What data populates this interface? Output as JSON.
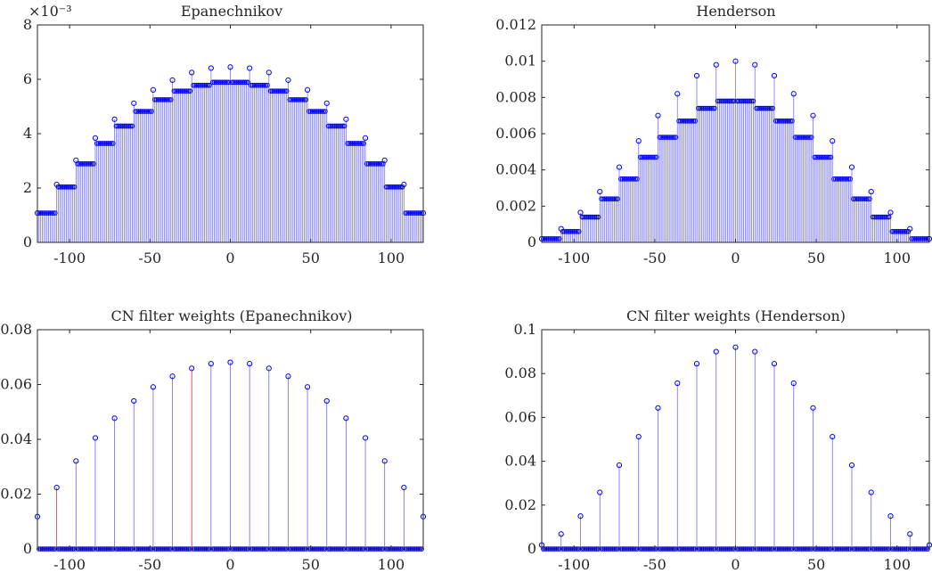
{
  "chart_data": [
    {
      "id": "epa",
      "type": "stem",
      "title": "Epanechnikov",
      "x_range": [
        -120,
        120
      ],
      "ylim": [
        0,
        0.008
      ],
      "y_ticks": [
        0,
        0.002,
        0.004,
        0.006,
        0.008
      ],
      "y_tick_labels": [
        "0",
        "2",
        "4",
        "6",
        "8"
      ],
      "y_scale_label": "×10⁻³",
      "x_ticks": [
        -100,
        -50,
        0,
        50,
        100
      ],
      "x_tick_labels": [
        "-100",
        "-50",
        "0",
        "50",
        "100"
      ],
      "color": "#0000ff",
      "step": 12,
      "marker_values": [
        0.00108,
        0.00213,
        0.00302,
        0.00384,
        0.00453,
        0.00512,
        0.00561,
        0.00597,
        0.00625,
        0.00641,
        0.00645,
        0.00641,
        0.00625,
        0.00597,
        0.00561,
        0.00512,
        0.00453,
        0.00384,
        0.00302,
        0.00213,
        0.00108
      ],
      "fill_values": [
        0.00108,
        0.00204,
        0.00289,
        0.00364,
        0.00428,
        0.00482,
        0.00525,
        0.00557,
        0.00578,
        0.00589,
        0.00589,
        0.00578,
        0.00557,
        0.00525,
        0.00482,
        0.00428,
        0.00364,
        0.00289,
        0.00204,
        0.00108
      ]
    },
    {
      "id": "hen",
      "type": "stem",
      "title": "Henderson",
      "x_range": [
        -120,
        120
      ],
      "ylim": [
        0,
        0.012
      ],
      "y_ticks": [
        0,
        0.002,
        0.004,
        0.006,
        0.008,
        0.01,
        0.012
      ],
      "y_tick_labels": [
        "0",
        "0.002",
        "0.004",
        "0.006",
        "0.008",
        "0.01",
        "0.012"
      ],
      "x_ticks": [
        -100,
        -50,
        0,
        50,
        100
      ],
      "x_tick_labels": [
        "-100",
        "-50",
        "0",
        "50",
        "100"
      ],
      "color": "#0000ff",
      "step": 12,
      "marker_values": [
        0.0002,
        0.00075,
        0.00165,
        0.0028,
        0.00415,
        0.0056,
        0.007,
        0.0082,
        0.0092,
        0.0098,
        0.01,
        0.0098,
        0.0092,
        0.0082,
        0.007,
        0.0056,
        0.00415,
        0.0028,
        0.00165,
        0.00075,
        0.0002
      ],
      "fill_values": [
        0.0002,
        0.0006,
        0.0014,
        0.0024,
        0.0035,
        0.0047,
        0.0058,
        0.0067,
        0.0074,
        0.0078,
        0.0078,
        0.0074,
        0.0067,
        0.0058,
        0.0047,
        0.0035,
        0.0024,
        0.0014,
        0.0006,
        0.0002
      ]
    },
    {
      "id": "cn-epa",
      "type": "stem",
      "title": "CN filter weights (Epanechnikov)",
      "x_range": [
        -120,
        120
      ],
      "ylim": [
        0,
        0.08
      ],
      "y_ticks": [
        0,
        0.02,
        0.04,
        0.06,
        0.08
      ],
      "y_tick_labels": [
        "0",
        "0.02",
        "0.04",
        "0.06",
        "0.08"
      ],
      "x_ticks": [
        -100,
        -50,
        0,
        50,
        100
      ],
      "x_tick_labels": [
        "-100",
        "-50",
        "0",
        "50",
        "100"
      ],
      "color": "#0000ff",
      "highlight_color": "#c00000",
      "highlight_x": [
        -108,
        -24
      ],
      "step": 12,
      "zero_step": 1,
      "marker_values": [
        0.0118,
        0.0224,
        0.0321,
        0.0405,
        0.0477,
        0.054,
        0.0591,
        0.063,
        0.0659,
        0.0676,
        0.0681,
        0.0676,
        0.0659,
        0.063,
        0.0591,
        0.054,
        0.0477,
        0.0405,
        0.0321,
        0.0224,
        0.0118
      ]
    },
    {
      "id": "cn-hen",
      "type": "stem",
      "title": "CN filter weights (Henderson)",
      "x_range": [
        -120,
        120
      ],
      "ylim": [
        0,
        0.1
      ],
      "y_ticks": [
        0,
        0.02,
        0.04,
        0.06,
        0.08,
        0.1
      ],
      "y_tick_labels": [
        "0",
        "0.02",
        "0.04",
        "0.06",
        "0.08",
        "0.1"
      ],
      "x_ticks": [
        -100,
        -50,
        0,
        50,
        100
      ],
      "x_tick_labels": [
        "-100",
        "-50",
        "0",
        "50",
        "100"
      ],
      "color": "#0000ff",
      "step": 12,
      "zero_step": 1,
      "marker_values": [
        0.0018,
        0.0068,
        0.015,
        0.0258,
        0.0382,
        0.0512,
        0.0643,
        0.0756,
        0.0845,
        0.09,
        0.092,
        0.09,
        0.0845,
        0.0756,
        0.0643,
        0.0512,
        0.0382,
        0.0258,
        0.015,
        0.0068,
        0.0018
      ]
    }
  ]
}
